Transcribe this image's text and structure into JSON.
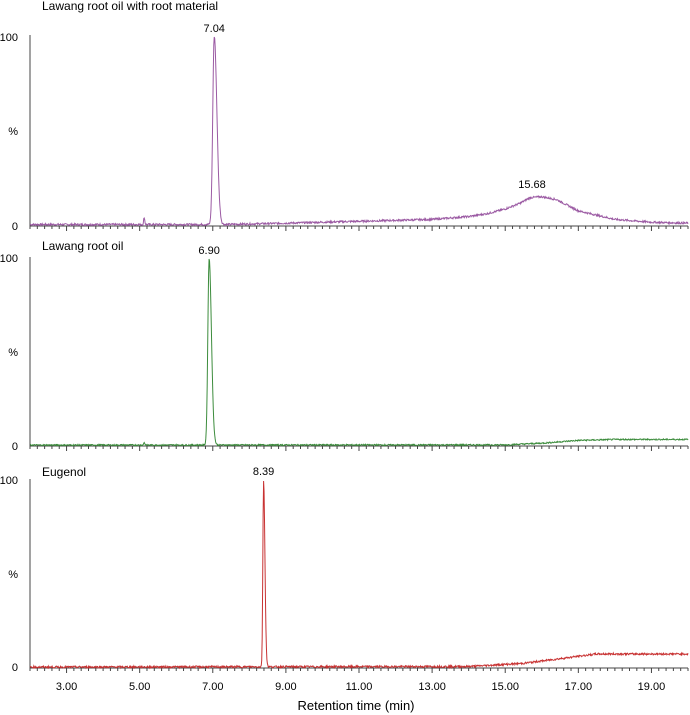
{
  "chart_data": {
    "type": "line",
    "xlabel": "Retention time (min)",
    "xlim": [
      2.0,
      20.0
    ],
    "ylim": [
      0,
      100
    ],
    "x_tick_labels": [
      "3.00",
      "5.00",
      "7.00",
      "9.00",
      "11.00",
      "13.00",
      "15.00",
      "17.00",
      "19.00"
    ],
    "y_tick_labels": [
      "100",
      "%",
      "0"
    ],
    "panels": [
      {
        "id": "panel1",
        "title": "Lawang root oil with root material",
        "color": "#9b5aa3",
        "peak_label": "7.04",
        "peak_x": 7.04,
        "peaks": [
          {
            "x": 5.12,
            "y": 4,
            "w": 0.01
          },
          {
            "x": 7.04,
            "y": 100,
            "w": 0.04
          }
        ],
        "baseline": [
          [
            2.0,
            0.8
          ],
          [
            7.3,
            0.8
          ],
          [
            9.0,
            1.5
          ],
          [
            11.0,
            2.5
          ],
          [
            13.0,
            3.5
          ],
          [
            14.0,
            5
          ],
          [
            14.5,
            6.5
          ],
          [
            15.0,
            9
          ],
          [
            15.4,
            12
          ],
          [
            15.68,
            15
          ],
          [
            16.0,
            15.5
          ],
          [
            16.4,
            14
          ],
          [
            17.0,
            8
          ],
          [
            18.0,
            3.5
          ],
          [
            19.0,
            2.0
          ],
          [
            20.0,
            1.5
          ]
        ],
        "noise": 0.5
      },
      {
        "id": "panel2",
        "title": "Lawang root oil",
        "color": "#3c8c3c",
        "peak_label": "6.90",
        "peak_x": 6.9,
        "peaks": [
          {
            "x": 5.12,
            "y": 1.5,
            "w": 0.01
          },
          {
            "x": 6.9,
            "y": 100,
            "w": 0.035
          }
        ],
        "baseline": [
          [
            2.0,
            0.5
          ],
          [
            15.0,
            0.6
          ],
          [
            16.0,
            1.5
          ],
          [
            17.0,
            3.0
          ],
          [
            18.0,
            3.5
          ],
          [
            20.0,
            3.5
          ]
        ],
        "noise": 0.35
      },
      {
        "id": "panel3",
        "title": "Eugenol",
        "color": "#c83232",
        "peak_label": "8.39",
        "peak_x": 8.39,
        "peaks": [
          {
            "x": 8.39,
            "y": 100,
            "w": 0.02
          }
        ],
        "baseline": [
          [
            2.0,
            0.5
          ],
          [
            14.0,
            0.8
          ],
          [
            15.5,
            2.5
          ],
          [
            16.5,
            5
          ],
          [
            17.5,
            7.5
          ],
          [
            20.0,
            7.5
          ]
        ],
        "noise": 0.5
      }
    ]
  }
}
